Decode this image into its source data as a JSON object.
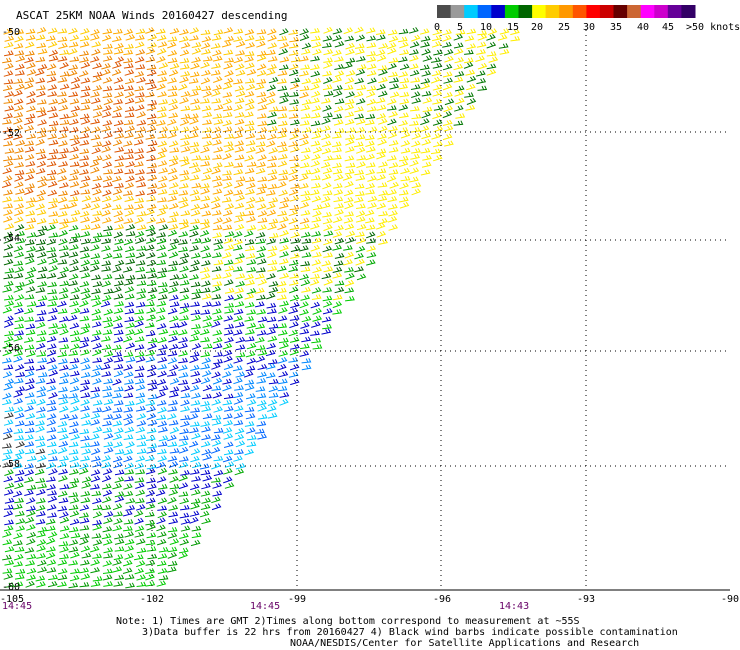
{
  "title": "ASCAT 25KM NOAA Winds 20160427 descending",
  "legend": {
    "colors": [
      "#4c4c4c",
      "#9a9a9a",
      "#00ccff",
      "#0066ff",
      "#0000cc",
      "#00cc00",
      "#006600",
      "#ffff00",
      "#ffcc00",
      "#ff9900",
      "#ff5500",
      "#ff0000",
      "#cc0000",
      "#660000",
      "#cc6633",
      "#ff00ff",
      "#cc00cc",
      "#660099",
      "#330066"
    ],
    "labels": [
      "0",
      "5",
      "10",
      "15",
      "20",
      "25",
      "30",
      "35",
      "40",
      "45",
      ">50 knots"
    ]
  },
  "axes": {
    "lon_labels": [
      "-105",
      "-102",
      "-99",
      "-96",
      "-93",
      "-90"
    ],
    "lat_labels": [
      "-50",
      "-52",
      "-54",
      "-56",
      "-58",
      "-60"
    ],
    "times": [
      "14:45",
      "14:45",
      "14:43"
    ]
  },
  "notes": {
    "line1": "Note: 1) Times are GMT 2)Times along bottom correspond to measurement at ~55S",
    "line2": "3)Data buffer is 22 hrs from 20160427 4) Black wind barbs indicate possible contamination",
    "line3": "NOAA/NESDIS/Center for Satellite Applications and Research"
  }
}
